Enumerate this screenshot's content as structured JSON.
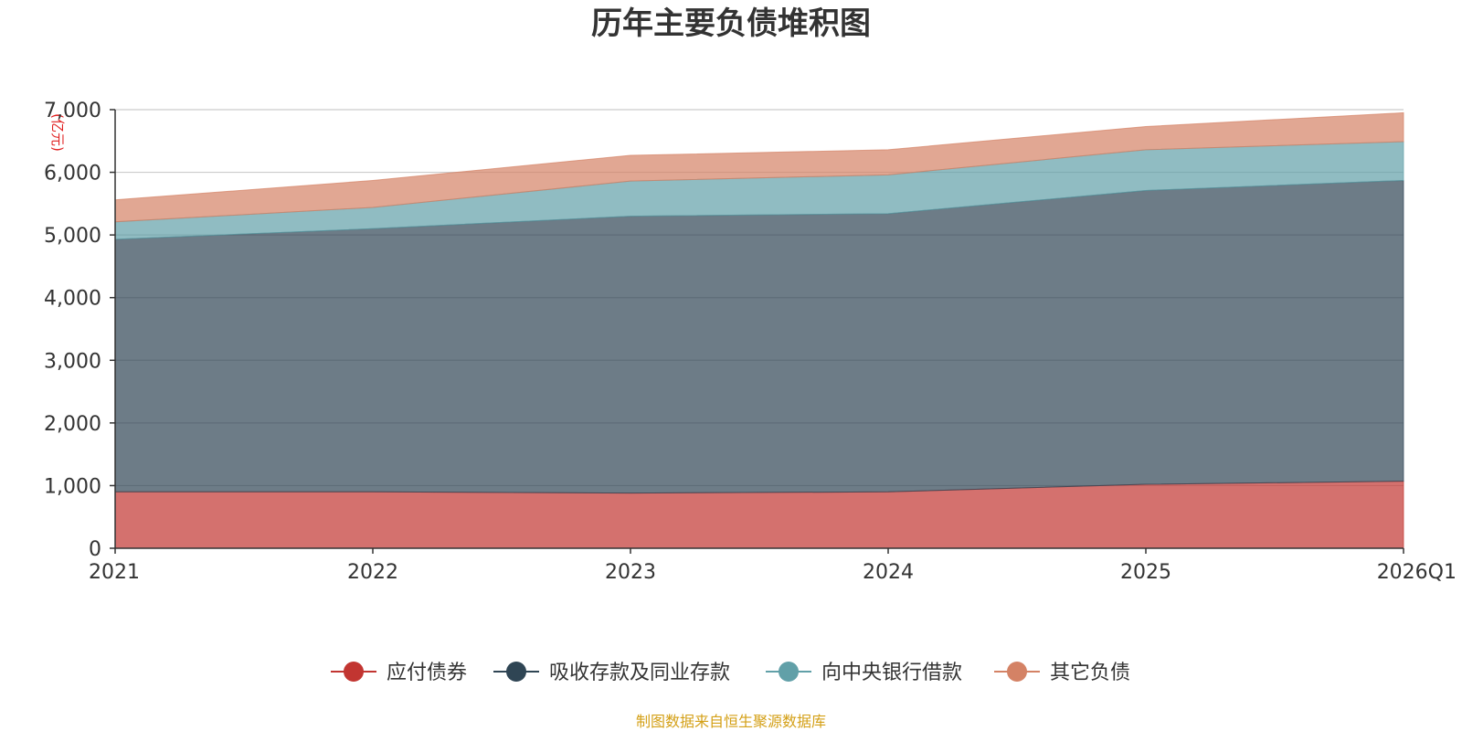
{
  "chart_data": {
    "type": "area",
    "stacked": true,
    "title": "历年主要负债堆积图",
    "unit_label": "(亿元)",
    "categories": [
      "2021",
      "2022",
      "2023",
      "2024",
      "2025",
      "2026Q1"
    ],
    "ylim": [
      0,
      7000
    ],
    "yticks": [
      0,
      1000,
      2000,
      3000,
      4000,
      5000,
      6000,
      7000
    ],
    "ytick_labels": [
      "0",
      "1,000",
      "2,000",
      "3,000",
      "4,000",
      "5,000",
      "6,000",
      "7,000"
    ],
    "series": [
      {
        "name": "应付债券",
        "color": "#c23531",
        "values": [
          900,
          900,
          880,
          900,
          1020,
          1070
        ]
      },
      {
        "name": "吸收存款及同业存款",
        "color": "#2f4554",
        "values": [
          4030,
          4200,
          4420,
          4440,
          4690,
          4800
        ]
      },
      {
        "name": "向中央银行借款",
        "color": "#61a0a8",
        "values": [
          280,
          340,
          560,
          620,
          650,
          620
        ]
      },
      {
        "name": "其它负债",
        "color": "#d48265",
        "values": [
          350,
          430,
          410,
          400,
          370,
          460
        ]
      }
    ],
    "legend_position": "bottom-center",
    "grid": true
  },
  "source_text": "制图数据来自恒生聚源数据库"
}
